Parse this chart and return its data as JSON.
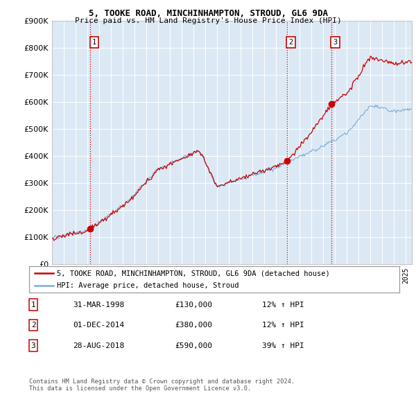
{
  "title1": "5, TOOKE ROAD, MINCHINHAMPTON, STROUD, GL6 9DA",
  "title2": "Price paid vs. HM Land Registry's House Price Index (HPI)",
  "legend_label1": "5, TOOKE ROAD, MINCHINHAMPTON, STROUD, GL6 9DA (detached house)",
  "legend_label2": "HPI: Average price, detached house, Stroud",
  "sale_color": "#cc0000",
  "hpi_color": "#7aadd4",
  "sales": [
    {
      "date": 1998.25,
      "price": 130000,
      "label": "1"
    },
    {
      "date": 2014.92,
      "price": 380000,
      "label": "2"
    },
    {
      "date": 2018.67,
      "price": 590000,
      "label": "3"
    }
  ],
  "table_rows": [
    [
      "1",
      "31-MAR-1998",
      "£130,000",
      "12% ↑ HPI"
    ],
    [
      "2",
      "01-DEC-2014",
      "£380,000",
      "12% ↑ HPI"
    ],
    [
      "3",
      "28-AUG-2018",
      "£590,000",
      "39% ↑ HPI"
    ]
  ],
  "footer": "Contains HM Land Registry data © Crown copyright and database right 2024.\nThis data is licensed under the Open Government Licence v3.0.",
  "ylim": [
    0,
    900000
  ],
  "yticks": [
    0,
    100000,
    200000,
    300000,
    400000,
    500000,
    600000,
    700000,
    800000,
    900000
  ],
  "xlim_start": 1995.0,
  "xlim_end": 2025.5,
  "plot_bg": "#dce9f5",
  "background_color": "#ffffff",
  "grid_color": "#ffffff"
}
